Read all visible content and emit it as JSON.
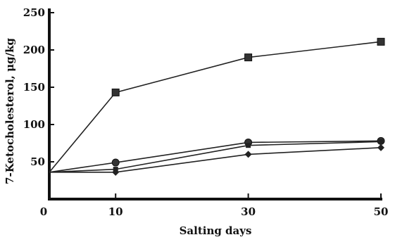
{
  "chart_data": {
    "type": "line",
    "title": "",
    "xlabel": "Salting days",
    "ylabel": "7-Ketocholesterol, μg/kg",
    "x": [
      0,
      10,
      30,
      50
    ],
    "x_ticks": [
      "0",
      "10",
      "30",
      "50"
    ],
    "y_ticks": [
      "50",
      "100",
      "150",
      "200",
      "250"
    ],
    "xlim": [
      0,
      50
    ],
    "ylim": [
      0,
      250
    ],
    "grid": false,
    "legend": "none",
    "series": [
      {
        "marker": "square",
        "values": [
          36,
          143,
          190,
          211
        ]
      },
      {
        "marker": "circle",
        "values": [
          36,
          49,
          76,
          78
        ]
      },
      {
        "marker": "square-small",
        "values": [
          36,
          40,
          72,
          77
        ]
      },
      {
        "marker": "diamond",
        "values": [
          36,
          36,
          60,
          69
        ]
      }
    ]
  }
}
